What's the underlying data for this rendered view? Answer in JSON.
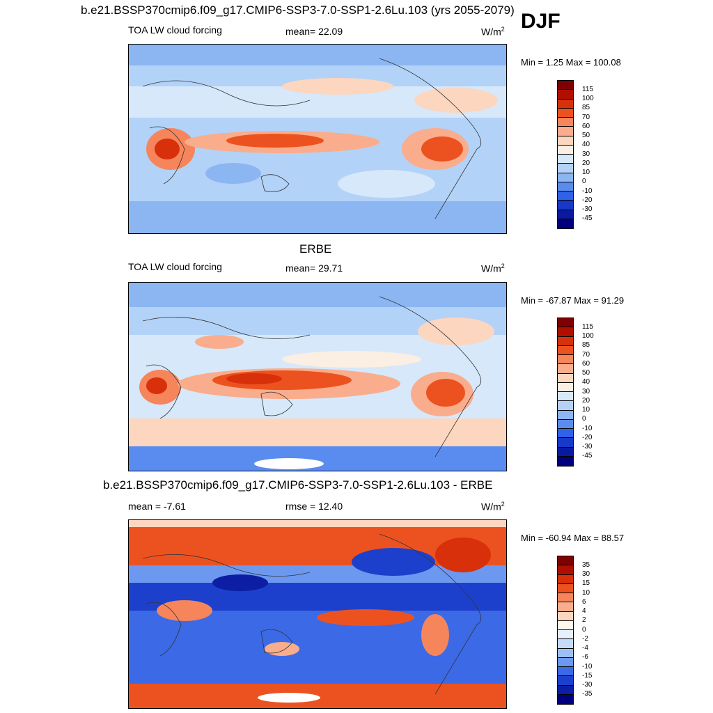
{
  "header": {
    "main_title": "b.e21.BSSP370cmip6.f09_g17.CMIP6-SSP3-7.0-SSP1-2.6Lu.103 (yrs 2055-2079)",
    "season": "DJF"
  },
  "panels": [
    {
      "title": "",
      "left_label": "TOA LW cloud forcing",
      "center_label": "mean=  22.09",
      "units": "W/m",
      "units_sup": "2",
      "minmax": "Min =   1.25 Max = 100.08",
      "colorbar_ticks": [
        "115",
        "100",
        "85",
        "70",
        "60",
        "50",
        "40",
        "30",
        "20",
        "10",
        "0",
        "-10",
        "-20",
        "-30",
        "-45"
      ]
    },
    {
      "title": "ERBE",
      "left_label": "TOA LW cloud forcing",
      "center_label": "mean=  29.71",
      "units": "W/m",
      "units_sup": "2",
      "minmax": "Min = -67.87 Max =  91.29",
      "colorbar_ticks": [
        "115",
        "100",
        "85",
        "70",
        "60",
        "50",
        "40",
        "30",
        "20",
        "10",
        "0",
        "-10",
        "-20",
        "-30",
        "-45"
      ]
    },
    {
      "title": "b.e21.BSSP370cmip6.f09_g17.CMIP6-SSP3-7.0-SSP1-2.6Lu.103 - ERBE",
      "left_label": "mean =  -7.61",
      "center_label": "rmse =  12.40",
      "units": "W/m",
      "units_sup": "2",
      "minmax": "Min = -60.94 Max =  88.57",
      "colorbar_ticks": [
        "35",
        "30",
        "15",
        "10",
        "6",
        "4",
        "2",
        "0",
        "-2",
        "-4",
        "-6",
        "-10",
        "-15",
        "-30",
        "-35"
      ]
    }
  ],
  "colors": {
    "abs_scale": [
      "#7f0000",
      "#b00f00",
      "#d8300a",
      "#ec5220",
      "#f6855c",
      "#f9ad8c",
      "#fcd6bf",
      "#fbeee2",
      "#d6e8fa",
      "#b3d2f7",
      "#8cb6f2",
      "#5a8cf0",
      "#2f62e6",
      "#1838c8",
      "#0a1aa0",
      "#00007f"
    ],
    "diff_scale": [
      "#7f0000",
      "#b00f00",
      "#d8300a",
      "#ec5220",
      "#f6855c",
      "#f9ad8c",
      "#fcd6bf",
      "#fff6ec",
      "#e6f0fc",
      "#c4dcf8",
      "#9cc0f4",
      "#6c98ef",
      "#3c6ae6",
      "#1d40cc",
      "#0b1ea4",
      "#00007f"
    ]
  }
}
